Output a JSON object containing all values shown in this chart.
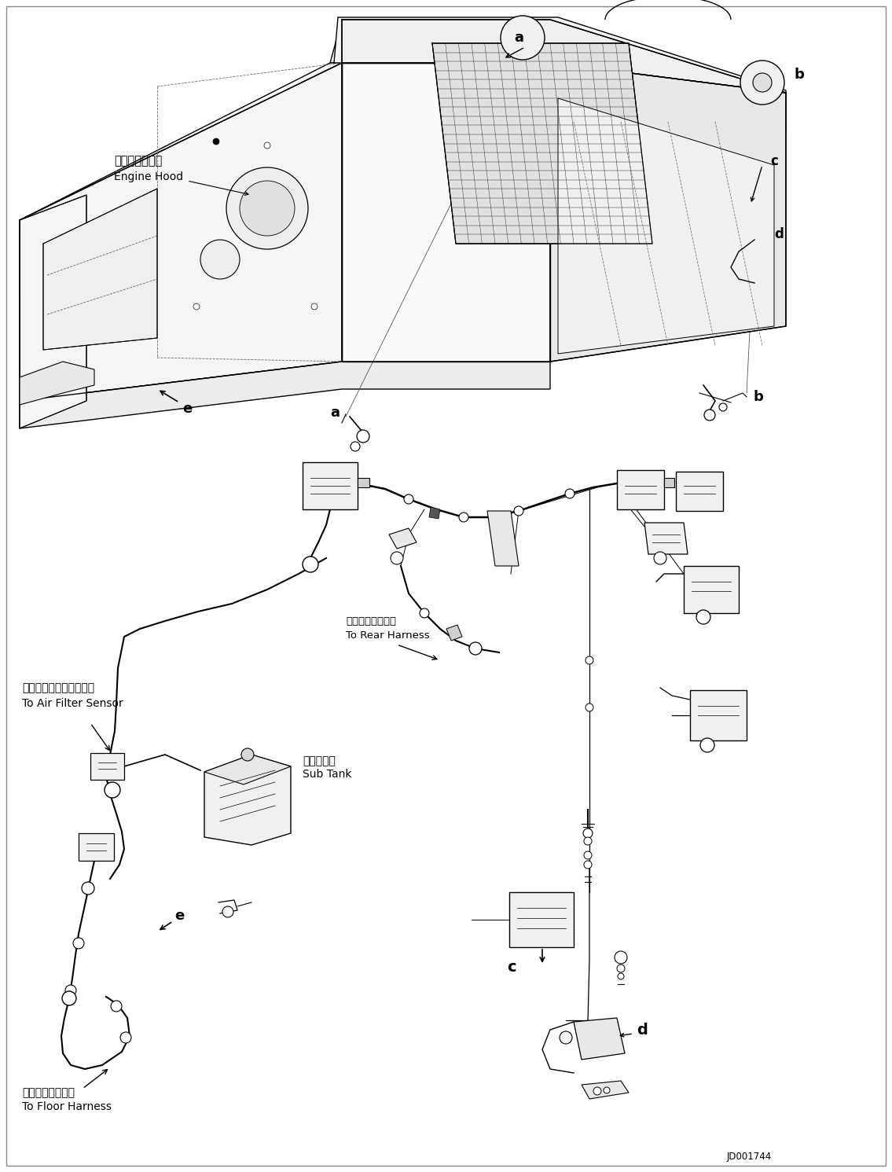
{
  "background_color": "#ffffff",
  "line_color": "#000000",
  "fig_width": 11.35,
  "fig_height": 14.91,
  "dpi": 100,
  "diagram_id": "JD001744",
  "labels": {
    "engine_hood_jp": "エンジンフード",
    "engine_hood_en": "Engine Hood",
    "air_filter_jp": "エアーフィルタセンサへ",
    "air_filter_en": "To Air Filter Sensor",
    "sub_tank_jp": "サブタンク",
    "sub_tank_en": "Sub Tank",
    "rear_harness_jp": "リヤーハーネスへ",
    "rear_harness_en": "To Rear Harness",
    "floor_harness_jp": "フロアハーネスへ",
    "floor_harness_en": "To Floor Harness"
  }
}
